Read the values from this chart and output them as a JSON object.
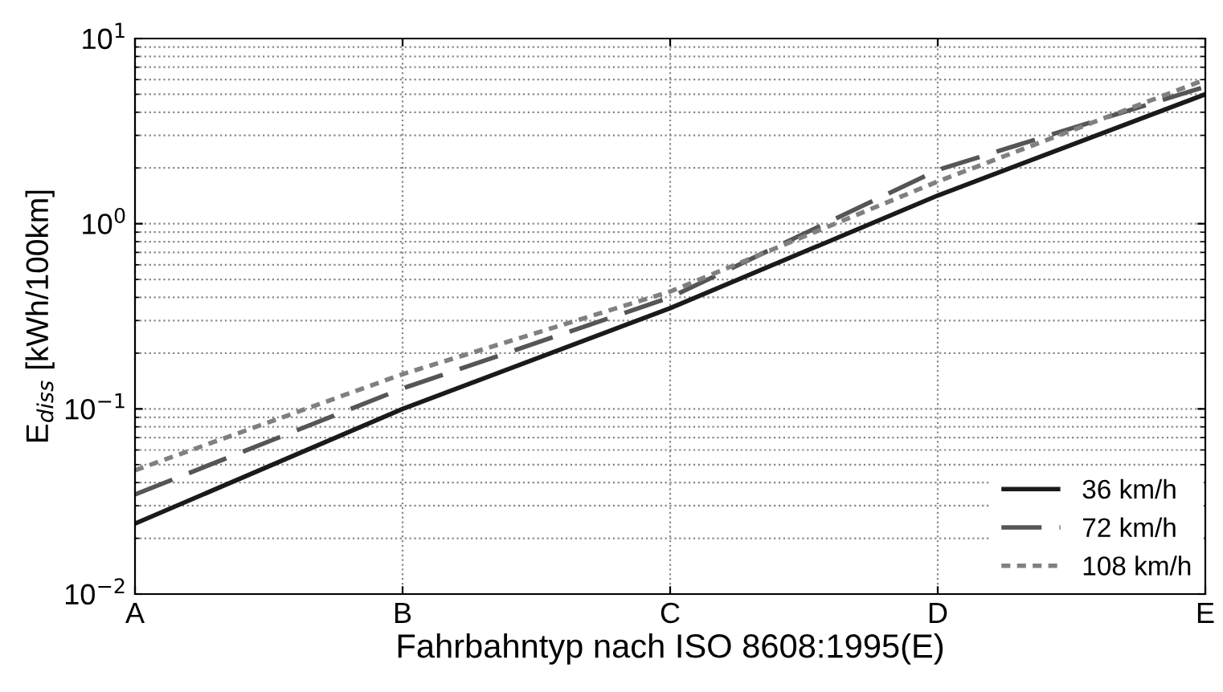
{
  "chart_data": {
    "type": "line",
    "xlabel": "Fahrbahntyp nach ISO 8608:1995(E)",
    "ylabel": "E$_{diss}$ [kWh/100km]",
    "log": "y",
    "grid": true,
    "legend": "bottom right",
    "categories": [
      "A",
      "B",
      "C",
      "D",
      "E"
    ],
    "ylim": [
      0.01,
      10
    ],
    "yticks": [
      {
        "value": 0.01,
        "label": "10$^{−2}$"
      },
      {
        "value": 0.1,
        "label": "10$^{−1}$"
      },
      {
        "value": 1,
        "label": "10$^{0}$"
      },
      {
        "value": 10,
        "label": "10$^{1}$"
      }
    ],
    "series": [
      {
        "name": "36 km/h",
        "color": "#1a1a1a",
        "line_style": "solid",
        "values": [
          0.024,
          0.1,
          0.35,
          1.42,
          5.0
        ]
      },
      {
        "name": "72 km/h",
        "color": "#555555",
        "line_style": "dashed",
        "values": [
          0.0345,
          0.129,
          0.4,
          1.95,
          5.5
        ]
      },
      {
        "name": "108 km/h",
        "color": "#808080",
        "line_style": "dotted",
        "values": [
          0.0466,
          0.154,
          0.43,
          1.69,
          6.0
        ]
      }
    ]
  }
}
